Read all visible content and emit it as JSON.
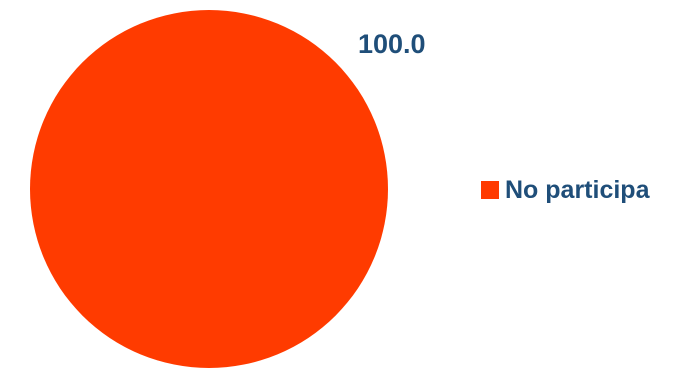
{
  "chart_data": {
    "type": "pie",
    "categories": [
      "No participa"
    ],
    "values": [
      100.0
    ],
    "data_labels": [
      "100.0"
    ],
    "colors": [
      "#ff3b00"
    ],
    "label_color": "#1f4e79",
    "legend_position": "right",
    "title": ""
  }
}
